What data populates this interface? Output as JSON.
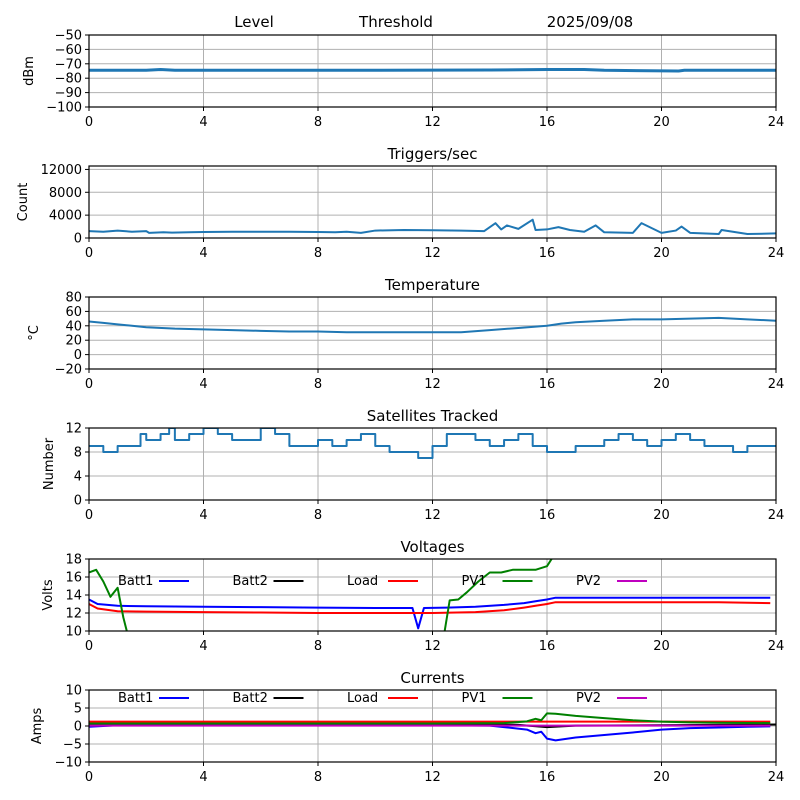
{
  "header": {
    "labels": [
      "Level",
      "Threshold",
      "2025/09/08"
    ]
  },
  "chart_data": [
    {
      "id": "level",
      "type": "line",
      "title": "",
      "xlabel": "",
      "ylabel": "dBm",
      "xlim": [
        0,
        24
      ],
      "ylim": [
        -100,
        -50
      ],
      "xticks": [
        0,
        4,
        8,
        12,
        16,
        20,
        24
      ],
      "yticks": [
        -100,
        -90,
        -80,
        -70,
        -60,
        -50
      ],
      "grid": true,
      "series": [
        {
          "name": "Level",
          "color": "#1f77b4",
          "x": [
            0,
            2,
            2.5,
            3,
            6,
            10,
            14,
            16,
            17.3,
            18,
            20.6,
            20.8,
            24
          ],
          "y": [
            -74.5,
            -74.5,
            -74,
            -74.5,
            -74.5,
            -74.5,
            -74.3,
            -74,
            -74,
            -74.5,
            -75,
            -74.5,
            -74.5
          ]
        }
      ]
    },
    {
      "id": "triggers",
      "type": "line",
      "title": "Triggers/sec",
      "xlabel": "",
      "ylabel": "Count",
      "xlim": [
        0,
        24
      ],
      "ylim": [
        0,
        12600
      ],
      "xticks": [
        0,
        4,
        8,
        12,
        16,
        20,
        24
      ],
      "yticks": [
        0,
        4000,
        8000,
        12000
      ],
      "grid": true,
      "series": [
        {
          "name": "Triggers",
          "color": "#1f77b4",
          "x": [
            0,
            0.5,
            1,
            1.5,
            2,
            2.1,
            2.6,
            2.9,
            3.5,
            4,
            5,
            6,
            7,
            8,
            8.6,
            9,
            9.5,
            10,
            11,
            12,
            13,
            13.8,
            14.2,
            14.4,
            14.6,
            15,
            15.5,
            15.6,
            16,
            16.4,
            16.8,
            17.3,
            17.7,
            18,
            19,
            19.3,
            20,
            20.5,
            20.7,
            21,
            22,
            22.1,
            23,
            24
          ],
          "y": [
            1200,
            1100,
            1300,
            1100,
            1200,
            900,
            1000,
            950,
            1000,
            1050,
            1100,
            1100,
            1100,
            1050,
            1000,
            1100,
            900,
            1300,
            1400,
            1350,
            1300,
            1200,
            2600,
            1500,
            2200,
            1600,
            3200,
            1400,
            1500,
            1900,
            1400,
            1100,
            2200,
            1000,
            900,
            2600,
            900,
            1300,
            2000,
            900,
            700,
            1400,
            700,
            800
          ]
        }
      ]
    },
    {
      "id": "temperature",
      "type": "line",
      "title": "Temperature",
      "xlabel": "",
      "ylabel": "°C",
      "xlim": [
        0,
        24
      ],
      "ylim": [
        -20,
        80
      ],
      "xticks": [
        0,
        4,
        8,
        12,
        16,
        20,
        24
      ],
      "yticks": [
        -20,
        0,
        20,
        40,
        60,
        80
      ],
      "grid": true,
      "series": [
        {
          "name": "Temperature",
          "color": "#1f77b4",
          "x": [
            0,
            0.5,
            1,
            1.5,
            2,
            3,
            4,
            5,
            6,
            7,
            8,
            9,
            10,
            11,
            12,
            13,
            14,
            15,
            16,
            16.5,
            17,
            18,
            19,
            20,
            21,
            22,
            22.5,
            23,
            24
          ],
          "y": [
            46,
            44,
            42,
            40,
            38,
            36,
            35,
            34,
            33,
            32,
            32,
            31,
            31,
            31,
            31,
            31,
            34,
            37,
            40,
            43,
            45,
            47,
            49,
            49,
            50,
            51,
            50,
            49,
            47
          ]
        }
      ]
    },
    {
      "id": "satellites",
      "type": "line",
      "title": "Satellites Tracked",
      "xlabel": "",
      "ylabel": "Number",
      "xlim": [
        0,
        24
      ],
      "ylim": [
        0,
        12
      ],
      "xticks": [
        0,
        4,
        8,
        12,
        16,
        20,
        24
      ],
      "yticks": [
        0,
        4,
        8,
        12
      ],
      "grid": true,
      "series": [
        {
          "name": "Satellites",
          "color": "#1f77b4",
          "x": [
            0,
            0.5,
            1,
            1.8,
            2,
            2.5,
            2.8,
            3,
            3.5,
            4,
            4.5,
            5,
            6,
            6.5,
            7,
            7.5,
            8,
            8.5,
            9,
            9.5,
            10,
            10.5,
            11,
            11.5,
            12,
            12.5,
            13,
            13.5,
            14,
            14.5,
            15,
            15.5,
            16,
            16.5,
            17,
            17.5,
            18,
            18.5,
            19,
            19.5,
            20,
            20.5,
            21,
            21.5,
            22,
            22.5,
            23,
            24
          ],
          "y": [
            9,
            8,
            9,
            11,
            10,
            11,
            12,
            10,
            11,
            12,
            11,
            10,
            12,
            11,
            9,
            9,
            10,
            9,
            10,
            11,
            9,
            8,
            8,
            7,
            9,
            11,
            11,
            10,
            9,
            10,
            11,
            9,
            8,
            8,
            9,
            9,
            10,
            11,
            10,
            9,
            10,
            11,
            10,
            9,
            9,
            8,
            9,
            9
          ]
        }
      ]
    },
    {
      "id": "voltages",
      "type": "line",
      "title": "Voltages",
      "xlabel": "",
      "ylabel": "Volts",
      "xlim": [
        0,
        24
      ],
      "ylim": [
        10,
        18
      ],
      "xticks": [
        0,
        4,
        8,
        12,
        16,
        20,
        24
      ],
      "yticks": [
        10,
        12,
        14,
        16,
        18
      ],
      "grid": true,
      "legend": "top, single row inside axes",
      "series": [
        {
          "name": "Batt1",
          "color": "#0000ff",
          "x": [
            0,
            0.3,
            1,
            2,
            4,
            6,
            8,
            10,
            11.3,
            11.5,
            11.7,
            12.5,
            13.5,
            14.5,
            15.2,
            15.6,
            16,
            16.3,
            18,
            20,
            22,
            23.8
          ],
          "y": [
            13.5,
            13,
            12.8,
            12.75,
            12.7,
            12.65,
            12.6,
            12.55,
            12.55,
            10.3,
            12.55,
            12.6,
            12.7,
            12.9,
            13.1,
            13.3,
            13.5,
            13.7,
            13.7,
            13.7,
            13.7,
            13.7
          ]
        },
        {
          "name": "Batt2",
          "color": "#000000",
          "x": [],
          "y": []
        },
        {
          "name": "Load",
          "color": "#ff0000",
          "x": [
            0,
            0.3,
            1,
            2,
            4,
            6,
            8,
            10,
            12,
            13.5,
            14.5,
            15.2,
            15.6,
            16,
            16.3,
            18,
            20,
            22,
            23.8
          ],
          "y": [
            13,
            12.5,
            12.2,
            12.15,
            12.1,
            12.05,
            12.0,
            12.0,
            12.0,
            12.1,
            12.3,
            12.6,
            12.8,
            13.0,
            13.2,
            13.2,
            13.2,
            13.2,
            13.1
          ]
        },
        {
          "name": "PV1",
          "color": "#008000",
          "x": [
            0,
            0.25,
            0.5,
            0.75,
            1.0,
            1.2,
            1.4,
            12.4,
            12.6,
            12.9,
            13.2,
            13.6,
            14.0,
            14.4,
            14.8,
            15.2,
            15.6,
            16.0,
            16.2
          ],
          "y": [
            16.5,
            16.8,
            15.5,
            13.8,
            14.8,
            11.5,
            9.0,
            9.5,
            13.4,
            13.5,
            14.3,
            15.5,
            16.5,
            16.5,
            16.8,
            16.8,
            16.8,
            17.2,
            18.2
          ]
        },
        {
          "name": "PV2",
          "color": "#bf00bf",
          "x": [],
          "y": []
        }
      ]
    },
    {
      "id": "currents",
      "type": "line",
      "title": "Currents",
      "xlabel": "",
      "ylabel": "Amps",
      "xlim": [
        0,
        24
      ],
      "ylim": [
        -10,
        10
      ],
      "xticks": [
        0,
        4,
        8,
        12,
        16,
        20,
        24
      ],
      "yticks": [
        -10,
        -5,
        0,
        5,
        10
      ],
      "grid": true,
      "legend": "top, single row inside axes",
      "series": [
        {
          "name": "Batt1",
          "color": "#0000ff",
          "x": [
            0,
            1,
            4,
            8,
            12,
            14,
            14.5,
            15.3,
            15.6,
            15.8,
            16,
            16.3,
            17,
            18,
            19,
            20,
            21,
            22,
            23,
            23.8
          ],
          "y": [
            -0.2,
            0.2,
            0.2,
            0.2,
            0.2,
            0.1,
            -0.3,
            -1.0,
            -2.0,
            -1.6,
            -3.5,
            -4.0,
            -3.2,
            -2.5,
            -1.8,
            -1.0,
            -0.6,
            -0.4,
            -0.2,
            -0.1
          ]
        },
        {
          "name": "Batt2",
          "color": "#000000",
          "x": [
            0,
            1,
            4,
            8,
            12,
            15,
            16,
            17,
            24
          ],
          "y": [
            0.5,
            0.4,
            0.4,
            0.4,
            0.4,
            0.3,
            -0.3,
            0.1,
            0.4
          ]
        },
        {
          "name": "Load",
          "color": "#ff0000",
          "x": [
            0,
            4,
            8,
            12,
            16,
            20,
            23.8
          ],
          "y": [
            1.2,
            1.2,
            1.2,
            1.2,
            1.2,
            1.2,
            1.2
          ]
        },
        {
          "name": "PV1",
          "color": "#008000",
          "x": [
            0,
            4,
            8,
            12,
            14.5,
            15.3,
            15.6,
            15.8,
            16,
            16.3,
            17,
            18,
            19,
            20,
            21,
            22,
            23.8
          ],
          "y": [
            0.7,
            0.7,
            0.7,
            0.7,
            0.8,
            1.3,
            2.0,
            1.6,
            3.5,
            3.4,
            2.8,
            2.2,
            1.6,
            1.2,
            1.0,
            0.9,
            0.8
          ]
        },
        {
          "name": "PV2",
          "color": "#bf00bf",
          "x": [
            0,
            4,
            8,
            12,
            16,
            20,
            23.8
          ],
          "y": [
            0.1,
            0.1,
            0.1,
            0.1,
            0.1,
            0.1,
            0.1
          ]
        }
      ]
    }
  ]
}
